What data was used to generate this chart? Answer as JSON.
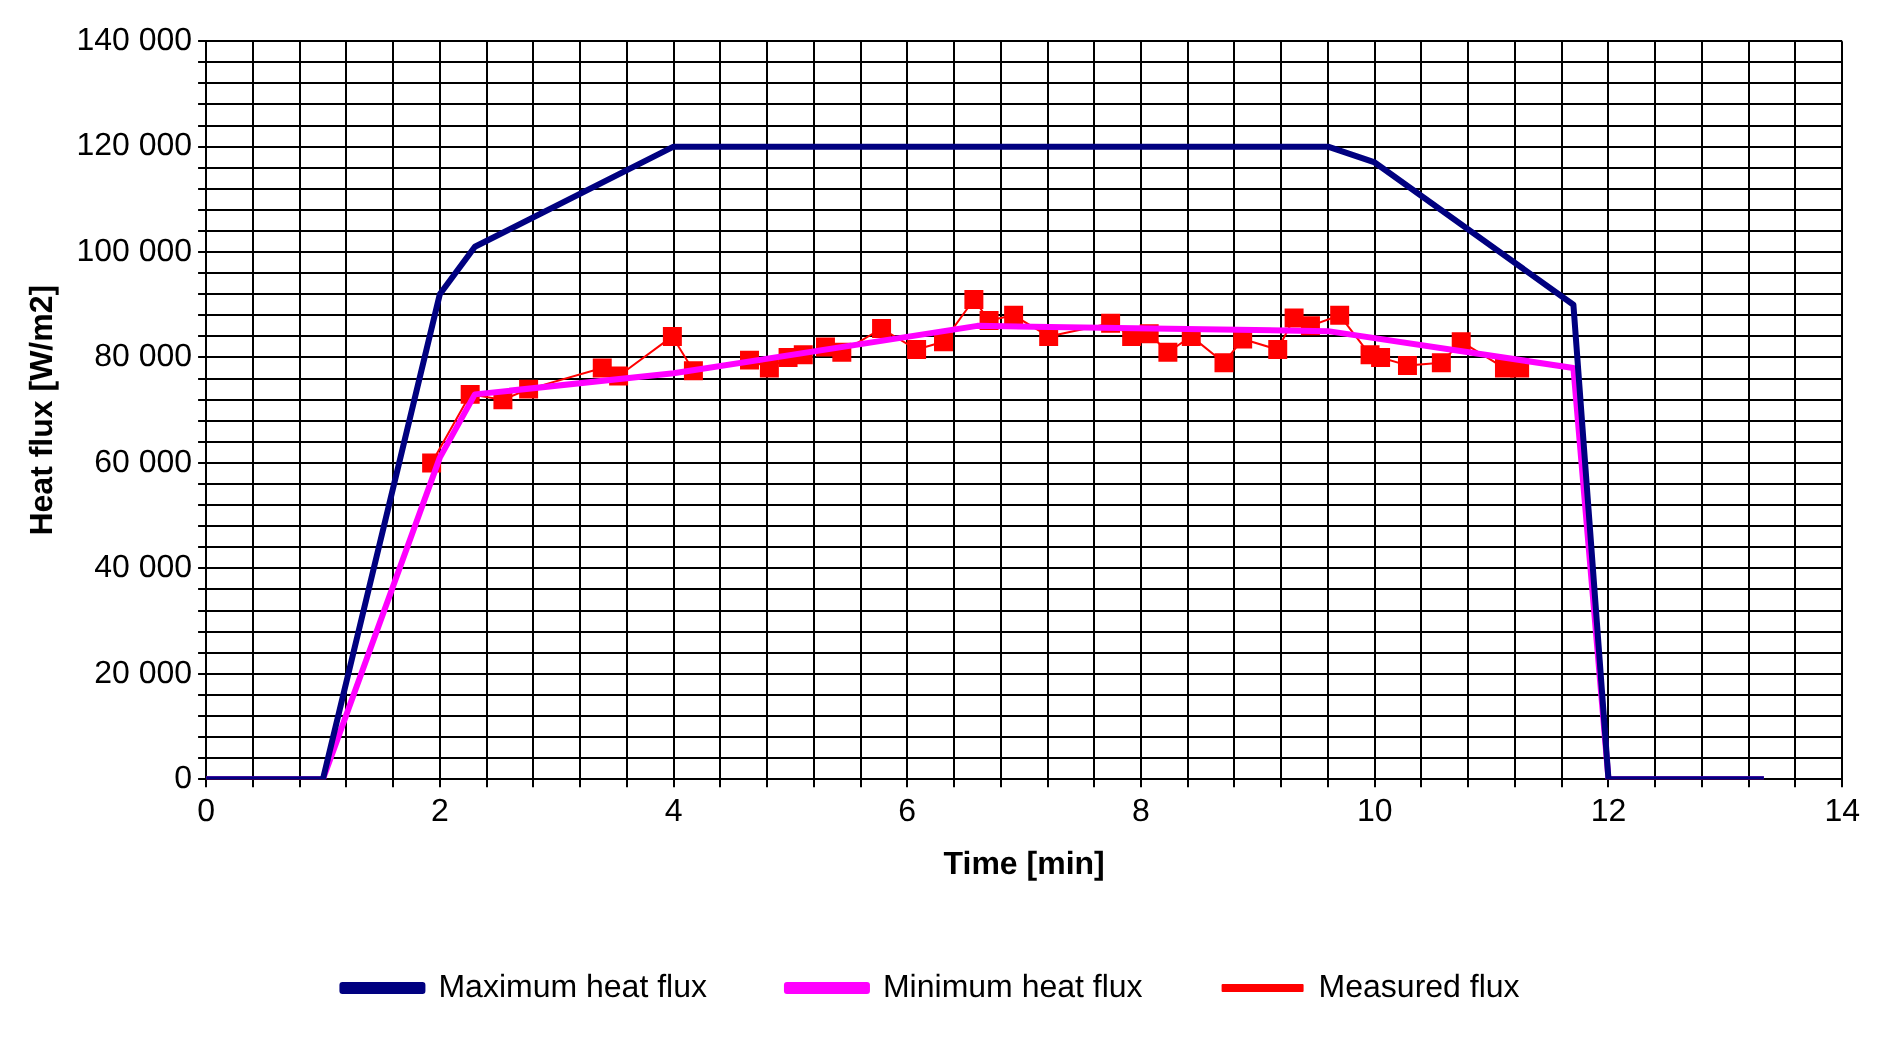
{
  "chart_data": {
    "type": "line",
    "xlabel": "Time [min]",
    "ylabel": "Heat flux [W/m2]",
    "xlim": [
      0,
      14
    ],
    "ylim": [
      0,
      140000
    ],
    "xticks": [
      0,
      {
        "value": 0.4,
        "label": null
      },
      {
        "value": 0.8,
        "label": null
      },
      {
        "value": 1.2,
        "label": null
      },
      {
        "value": 1.6,
        "label": null
      },
      2,
      {
        "value": 2.4,
        "label": null
      },
      {
        "value": 2.8,
        "label": null
      },
      {
        "value": 3.2,
        "label": null
      },
      {
        "value": 3.6,
        "label": null
      },
      4,
      {
        "value": 4.4,
        "label": null
      },
      {
        "value": 4.8,
        "label": null
      },
      {
        "value": 5.2,
        "label": null
      },
      {
        "value": 5.6,
        "label": null
      },
      6,
      {
        "value": 6.4,
        "label": null
      },
      {
        "value": 6.8,
        "label": null
      },
      {
        "value": 7.2,
        "label": null
      },
      {
        "value": 7.6,
        "label": null
      },
      8,
      {
        "value": 8.4,
        "label": null
      },
      {
        "value": 8.8,
        "label": null
      },
      {
        "value": 9.2,
        "label": null
      },
      {
        "value": 9.6,
        "label": null
      },
      10,
      {
        "value": 10.4,
        "label": null
      },
      {
        "value": 10.8,
        "label": null
      },
      {
        "value": 11.2,
        "label": null
      },
      {
        "value": 11.6,
        "label": null
      },
      12,
      {
        "value": 12.4,
        "label": null
      },
      {
        "value": 12.8,
        "label": null
      },
      {
        "value": 13.2,
        "label": null
      },
      {
        "value": 13.6,
        "label": null
      },
      14
    ],
    "yticks": [
      {
        "value": 0,
        "label": "0"
      },
      {
        "value": 4000,
        "label": null
      },
      {
        "value": 8000,
        "label": null
      },
      {
        "value": 12000,
        "label": null
      },
      {
        "value": 16000,
        "label": null
      },
      {
        "value": 20000,
        "label": "20 000"
      },
      {
        "value": 24000,
        "label": null
      },
      {
        "value": 28000,
        "label": null
      },
      {
        "value": 32000,
        "label": null
      },
      {
        "value": 36000,
        "label": null
      },
      {
        "value": 40000,
        "label": "40 000"
      },
      {
        "value": 44000,
        "label": null
      },
      {
        "value": 48000,
        "label": null
      },
      {
        "value": 52000,
        "label": null
      },
      {
        "value": 56000,
        "label": null
      },
      {
        "value": 60000,
        "label": "60 000"
      },
      {
        "value": 64000,
        "label": null
      },
      {
        "value": 68000,
        "label": null
      },
      {
        "value": 72000,
        "label": null
      },
      {
        "value": 76000,
        "label": null
      },
      {
        "value": 80000,
        "label": "80 000"
      },
      {
        "value": 84000,
        "label": null
      },
      {
        "value": 88000,
        "label": null
      },
      {
        "value": 92000,
        "label": null
      },
      {
        "value": 96000,
        "label": null
      },
      {
        "value": 100000,
        "label": "100 000"
      },
      {
        "value": 104000,
        "label": null
      },
      {
        "value": 108000,
        "label": null
      },
      {
        "value": 112000,
        "label": null
      },
      {
        "value": 116000,
        "label": null
      },
      {
        "value": 120000,
        "label": "120 000"
      },
      {
        "value": 124000,
        "label": null
      },
      {
        "value": 128000,
        "label": null
      },
      {
        "value": 132000,
        "label": null
      },
      {
        "value": 136000,
        "label": null
      },
      {
        "value": 140000,
        "label": "140 000"
      }
    ],
    "grid": true,
    "legend": "bottom",
    "line_style": "solid",
    "series": [
      {
        "name": "Maximum heat flux",
        "color": "#000080",
        "marker": "none",
        "x": [
          0,
          1,
          2,
          2.3,
          4,
          9.6,
          10,
          11.7,
          12,
          13.33
        ],
        "values": [
          0,
          0,
          92000,
          101000,
          120000,
          120000,
          117000,
          90000,
          0,
          0
        ]
      },
      {
        "name": "Minimum heat flux",
        "color": "#ff00ff",
        "marker": "none",
        "x": [
          0,
          1,
          2,
          2.3,
          4,
          6.6,
          9.6,
          11.7,
          12,
          13.33
        ],
        "values": [
          0,
          0,
          61000,
          73000,
          77000,
          86000,
          85000,
          78000,
          0,
          0
        ]
      },
      {
        "name": "Measured flux",
        "color": "#ff0000",
        "marker": "square",
        "x": [
          1.93,
          2.26,
          2.54,
          2.76,
          3.39,
          3.53,
          3.99,
          4.17,
          4.65,
          4.82,
          4.98,
          5.11,
          5.3,
          5.44,
          5.78,
          6.08,
          6.31,
          6.57,
          6.7,
          6.91,
          7.21,
          7.74,
          7.92,
          8.07,
          8.23,
          8.43,
          8.71,
          8.87,
          9.17,
          9.31,
          9.45,
          9.7,
          9.96,
          10.05,
          10.28,
          10.57,
          10.74,
          11.11,
          11.24
        ],
        "values": [
          60000,
          73000,
          72000,
          74000,
          78000,
          76500,
          84000,
          77500,
          79500,
          78000,
          80000,
          80500,
          82000,
          81000,
          85500,
          81500,
          83000,
          91000,
          87000,
          88000,
          84000,
          86500,
          84000,
          84500,
          81000,
          84000,
          79000,
          83500,
          81500,
          87500,
          86000,
          88000,
          80500,
          80000,
          78500,
          79000,
          83000,
          78000,
          78000
        ]
      }
    ]
  }
}
